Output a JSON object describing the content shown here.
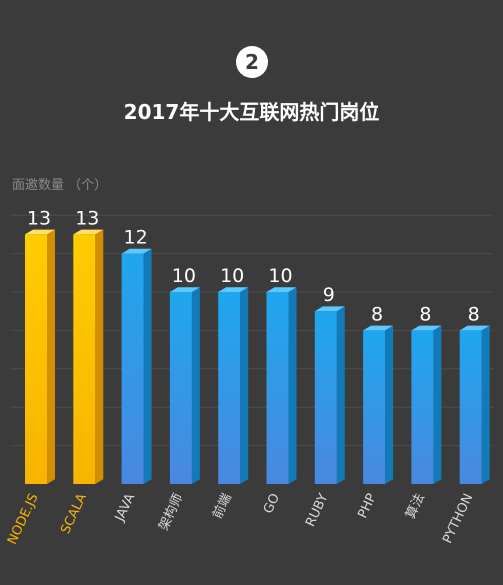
{
  "badge": "2",
  "title": "2017年十大互联网热门岗位",
  "ylabel": "面邀数量 （个）",
  "chart_data": {
    "type": "bar",
    "title": "2017年十大互联网热门岗位",
    "ylabel": "面邀数量 （个）",
    "xlabel": "",
    "categories": [
      "NODE.JS",
      "SCALA",
      "JAVA",
      "架构师",
      "前端",
      "GO",
      "RUBY",
      "PHP",
      "算法",
      "PYTHON"
    ],
    "values": [
      13,
      13,
      12,
      10,
      10,
      10,
      9,
      8,
      8,
      8
    ],
    "highlight": [
      true,
      true,
      false,
      false,
      false,
      false,
      false,
      false,
      false,
      false
    ],
    "colors": {
      "highlight_front": "#f8b400",
      "highlight_top": "#ffe066",
      "highlight_side": "#d48e00",
      "normal_front_top": "#1ea7ee",
      "normal_front_bottom": "#4a88e0",
      "normal_top": "#5cc8ff",
      "normal_side": "#137ab8",
      "label": "#ffffff",
      "highlight_label": "#f8b400",
      "grid": "#4e4e4e"
    },
    "ylim": [
      0,
      16
    ],
    "grid": true
  }
}
